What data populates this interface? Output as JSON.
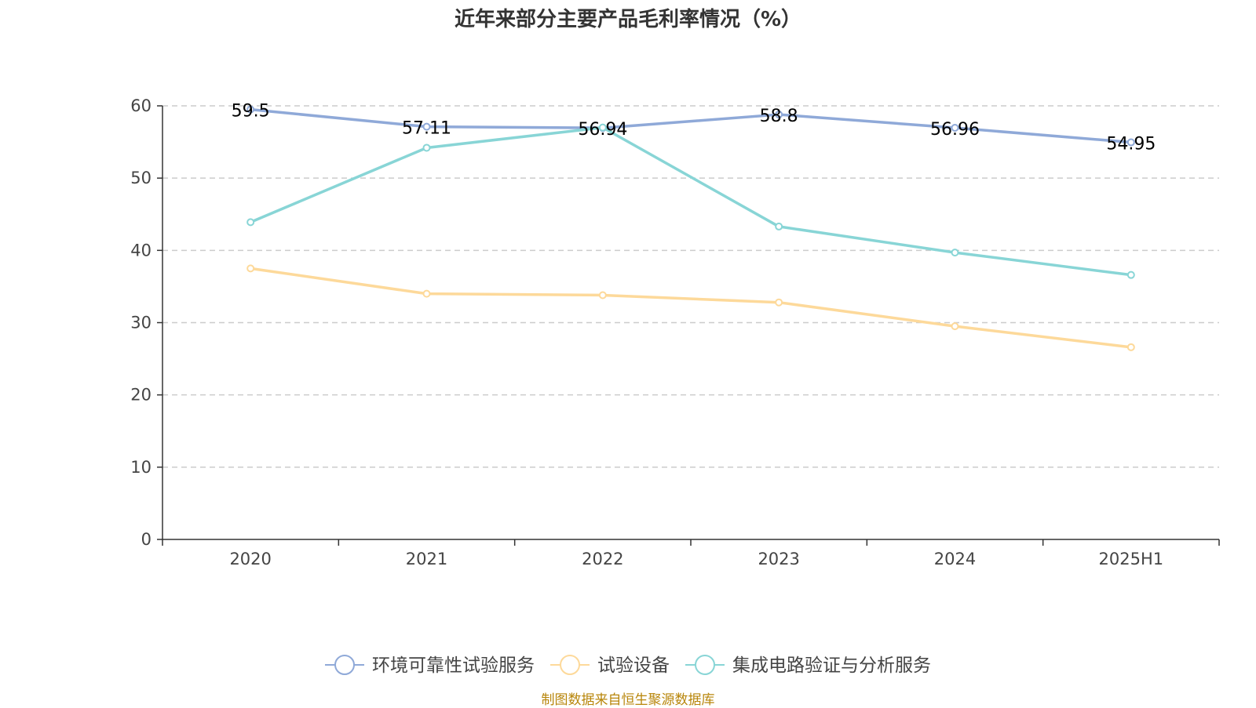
{
  "title": "近年来部分主要产品毛利率情况（%）",
  "source": "制图数据来自恒生聚源数据库",
  "chart_data": {
    "type": "line",
    "title": "近年来部分主要产品毛利率情况（%）",
    "categories": [
      "2020",
      "2021",
      "2022",
      "2023",
      "2024",
      "2025H1"
    ],
    "ylim": [
      0,
      60
    ],
    "yticks": [
      0,
      10,
      20,
      30,
      40,
      50,
      60
    ],
    "grid": true,
    "legend_position": "bottom",
    "series": [
      {
        "name": "环境可靠性试验服务",
        "color": "#8fa9d8",
        "values": [
          59.5,
          57.11,
          56.94,
          58.8,
          56.96,
          54.95
        ],
        "show_labels": true
      },
      {
        "name": "试验设备",
        "color": "#fdd99a",
        "values": [
          37.5,
          34.0,
          33.8,
          32.8,
          29.5,
          26.6
        ],
        "show_labels": false
      },
      {
        "name": "集成电路验证与分析服务",
        "color": "#88d5d6",
        "values": [
          43.9,
          54.2,
          57.0,
          43.3,
          39.7,
          36.6
        ],
        "show_labels": false
      }
    ]
  }
}
